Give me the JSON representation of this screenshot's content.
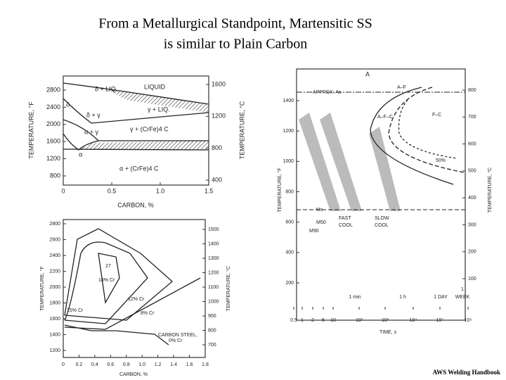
{
  "title_lines": [
    "From a Metallurgical Standpoint, Martensitic SS",
    "is similar to Plain Carbon"
  ],
  "credit": "AWS Welding Handbook",
  "top_left": {
    "x_label": "CARBON, %",
    "y_left_label": "TEMPERATURE, °F",
    "y_right_label": "TEMPERATURE, °C",
    "left_ticks": [
      "2800",
      "2400",
      "2000",
      "1600",
      "1200",
      "800"
    ],
    "right_ticks": [
      "1600",
      "1200",
      "800",
      "400"
    ],
    "x_ticks": [
      "0",
      "0.5",
      "1.0",
      "1.5"
    ],
    "regions": [
      "δ + LIQ.",
      "LIQUID",
      "δ",
      "δ + γ",
      "γ + LIQ.",
      "α + γ",
      "γ + (CrFe)4 C",
      "α",
      "α + (CrFe)4 C"
    ]
  },
  "bottom_left": {
    "x_label": "CARBON, %",
    "y_left_label": "TEMPERATURE, °F",
    "y_right_label": "TEMPERATURE, °C",
    "left_ticks": [
      "2800",
      "2600",
      "2400",
      "2200",
      "2000",
      "1800",
      "1600",
      "1400",
      "1200"
    ],
    "right_ticks": [
      "1500",
      "1400",
      "1300",
      "1200",
      "1100",
      "1000",
      "900",
      "800",
      "700"
    ],
    "x_ticks": [
      "0",
      "0.2",
      "0.4",
      "0.6",
      "0.8",
      "1.0",
      "1.2",
      "1.4",
      "1.6",
      "1.8"
    ],
    "regions": [
      "27",
      "18% Cr",
      "15% Cr",
      "12% Cr",
      "8% Cr",
      "CARBON STEEL,",
      "0% Cr"
    ]
  },
  "right": {
    "x_label": "TIME, s",
    "y_left_label": "TEMPERATURE, °F",
    "y_right_label": "TEMPERATURE, °C",
    "left_ticks": [
      "1400",
      "1200",
      "1000",
      "800",
      "600",
      "400",
      "200"
    ],
    "right_ticks": [
      "800",
      "700",
      "600",
      "500",
      "400",
      "300",
      "200",
      "100"
    ],
    "x_ticks": [
      "0.5",
      "1",
      "2",
      "5",
      "10",
      "10²",
      "10³",
      "10⁴",
      "10⁵",
      "10⁶"
    ],
    "time_marks": [
      "1 min",
      "1 h",
      "1 DAY",
      "1",
      "WEEK"
    ],
    "regions": [
      "A",
      "APPRCX. As",
      "A–F",
      "A–F–C",
      "F–C",
      "50%",
      "Ms",
      "M50",
      "M90",
      "FAST",
      "COOL",
      "SLOW",
      "COOL"
    ]
  }
}
